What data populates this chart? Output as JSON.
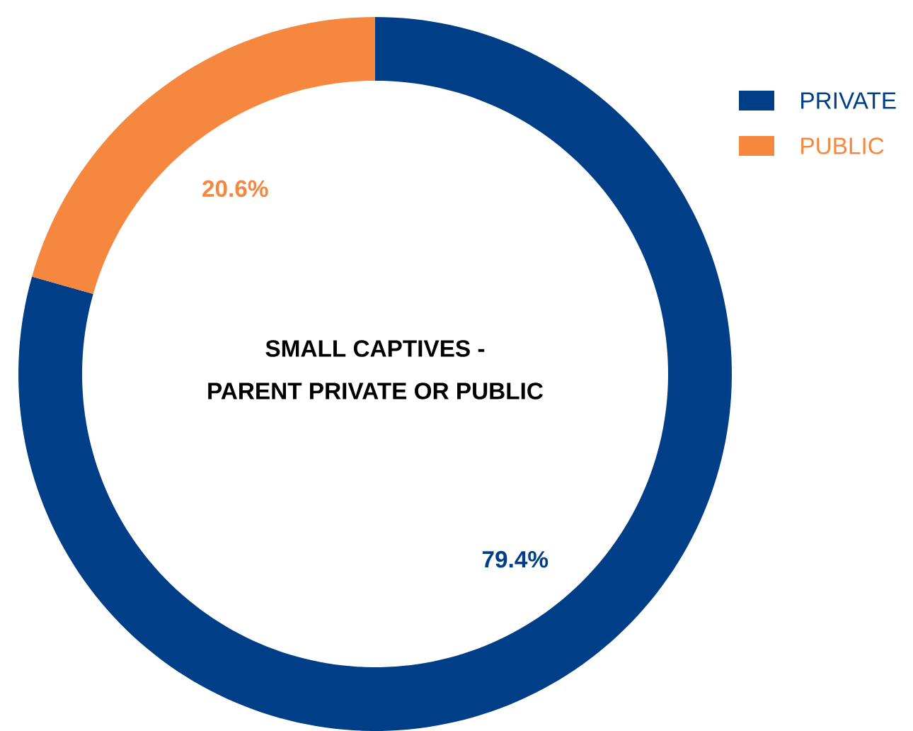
{
  "chart_data": {
    "type": "donut",
    "title": "SMALL CAPTIVES -",
    "subtitle": "PARENT PRIVATE OR PUBLIC",
    "categories": [
      "PRIVATE",
      "PUBLIC"
    ],
    "values": [
      79.4,
      20.6
    ],
    "colors": [
      "#003f87",
      "#f5873e"
    ],
    "value_labels": [
      "79.4%",
      "20.6%"
    ],
    "legend": "top right"
  }
}
